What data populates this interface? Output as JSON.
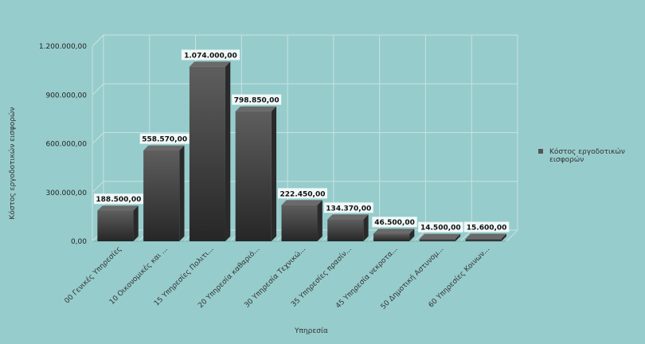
{
  "chart_data": {
    "type": "bar",
    "xlabel": "Υπηρεσία",
    "ylabel": "Κόστος εργοδοτικών εισφορών",
    "ylim": [
      0,
      1200000
    ],
    "yticks": [
      0,
      300000,
      600000,
      900000,
      1200000
    ],
    "ytick_labels": [
      "0,00",
      "300.000,00",
      "600.000,00",
      "900.000,00",
      "1.200.000,00"
    ],
    "grid": true,
    "legend_position": "right",
    "categories": [
      "00 Γενικές Υπηρεσίες",
      "10 Οικονομικές και ...",
      "15 Υπηρεσίες Πολιτι...",
      "20 Υπηρεσία καθαριό...",
      "30 Υπηρεσία Τεχνικώ...",
      "35 Υπηρεσίες πρασίν...",
      "45 Υπηρεσία νεκροτα...",
      "50 Δημοτική Αστυνομ...",
      "60 Υπηρεσίες Κοινων..."
    ],
    "series": [
      {
        "name": "Κόστος εργοδοτικών εισφορών",
        "color": "#555555",
        "values": [
          188500,
          558570,
          1074000,
          798850,
          222450,
          134370,
          46500,
          14500,
          15600
        ],
        "labels": [
          "188.500,00",
          "558.570,00",
          "1.074.000,00",
          "798.850,00",
          "222.450,00",
          "134.370,00",
          "46.500,00",
          "14.500,00",
          "15.600,00"
        ]
      }
    ]
  }
}
